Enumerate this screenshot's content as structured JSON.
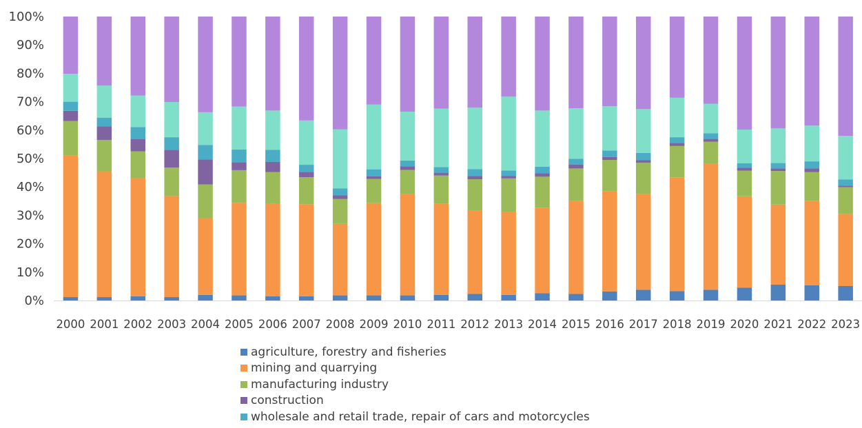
{
  "chart_data": {
    "type": "bar",
    "stacked": "percent",
    "categories": [
      "2000",
      "2001",
      "2002",
      "2003",
      "2004",
      "2005",
      "2006",
      "2007",
      "2008",
      "2009",
      "2010",
      "2011",
      "2012",
      "2013",
      "2014",
      "2015",
      "2016",
      "2017",
      "2018",
      "2019",
      "2020",
      "2021",
      "2022",
      "2023"
    ],
    "ylim": [
      0,
      100
    ],
    "yticks": [
      "0%",
      "10%",
      "20%",
      "30%",
      "40%",
      "50%",
      "60%",
      "70%",
      "80%",
      "90%",
      "100%"
    ],
    "grid": false,
    "legend_position": "bottom",
    "series": [
      {
        "name": "agriculture, forestry and fisheries",
        "color": "#4f81bd",
        "values": [
          1.2,
          1.2,
          1.5,
          1.2,
          2.0,
          1.8,
          1.5,
          1.5,
          1.8,
          1.8,
          1.8,
          2.0,
          2.3,
          2.0,
          2.6,
          2.3,
          3.2,
          3.8,
          3.3,
          3.8,
          4.5,
          5.6,
          5.4,
          5.1
        ]
      },
      {
        "name": "mining and quarrying",
        "color": "#f79646",
        "values": [
          50.0,
          44.3,
          41.6,
          35.6,
          27.0,
          32.6,
          32.5,
          32.4,
          25.2,
          32.5,
          35.6,
          32.2,
          29.4,
          29.2,
          30.1,
          32.8,
          35.3,
          33.8,
          40.1,
          44.4,
          32.2,
          28.2,
          29.6,
          25.4
        ]
      },
      {
        "name": "manufacturing industry",
        "color": "#9bbb59",
        "values": [
          12.0,
          11.0,
          9.4,
          10.0,
          11.9,
          11.5,
          11.2,
          9.5,
          8.8,
          8.5,
          8.6,
          9.8,
          11.0,
          11.8,
          10.9,
          11.4,
          11.0,
          10.9,
          11.0,
          7.7,
          9.0,
          11.8,
          10.2,
          9.4
        ]
      },
      {
        "name": "construction",
        "color": "#8064a2",
        "values": [
          3.6,
          4.8,
          4.3,
          6.3,
          8.8,
          2.8,
          3.6,
          1.9,
          1.3,
          0.9,
          1.2,
          1.0,
          1.1,
          0.9,
          1.2,
          1.4,
          1.0,
          0.9,
          1.1,
          1.0,
          1.1,
          0.9,
          1.3,
          0.5
        ]
      },
      {
        "name": "wholesale and retail trade, repair of cars and motorcycles",
        "color": "#4bacc6",
        "values": [
          3.2,
          3.1,
          4.3,
          4.4,
          5.1,
          4.5,
          4.3,
          2.5,
          2.4,
          2.5,
          2.1,
          2.0,
          2.5,
          1.9,
          2.3,
          2.0,
          2.3,
          2.6,
          2.0,
          2.0,
          1.5,
          1.9,
          2.5,
          2.2
        ]
      },
      {
        "name": "",
        "color": "#7fdfc9",
        "values": [
          9.8,
          11.3,
          11.1,
          12.4,
          11.5,
          15.1,
          13.8,
          15.6,
          20.8,
          22.8,
          17.2,
          20.6,
          21.6,
          26.0,
          19.8,
          17.8,
          15.6,
          15.4,
          13.9,
          10.4,
          11.9,
          12.2,
          12.6,
          15.4
        ]
      },
      {
        "name": "",
        "color": "#b387dc",
        "values": [
          20.2,
          24.3,
          27.8,
          30.1,
          33.7,
          31.7,
          33.1,
          36.6,
          39.7,
          31.0,
          33.5,
          32.4,
          32.1,
          28.2,
          33.1,
          32.3,
          31.6,
          32.6,
          28.6,
          30.7,
          39.8,
          39.4,
          38.4,
          42.0
        ]
      }
    ]
  }
}
